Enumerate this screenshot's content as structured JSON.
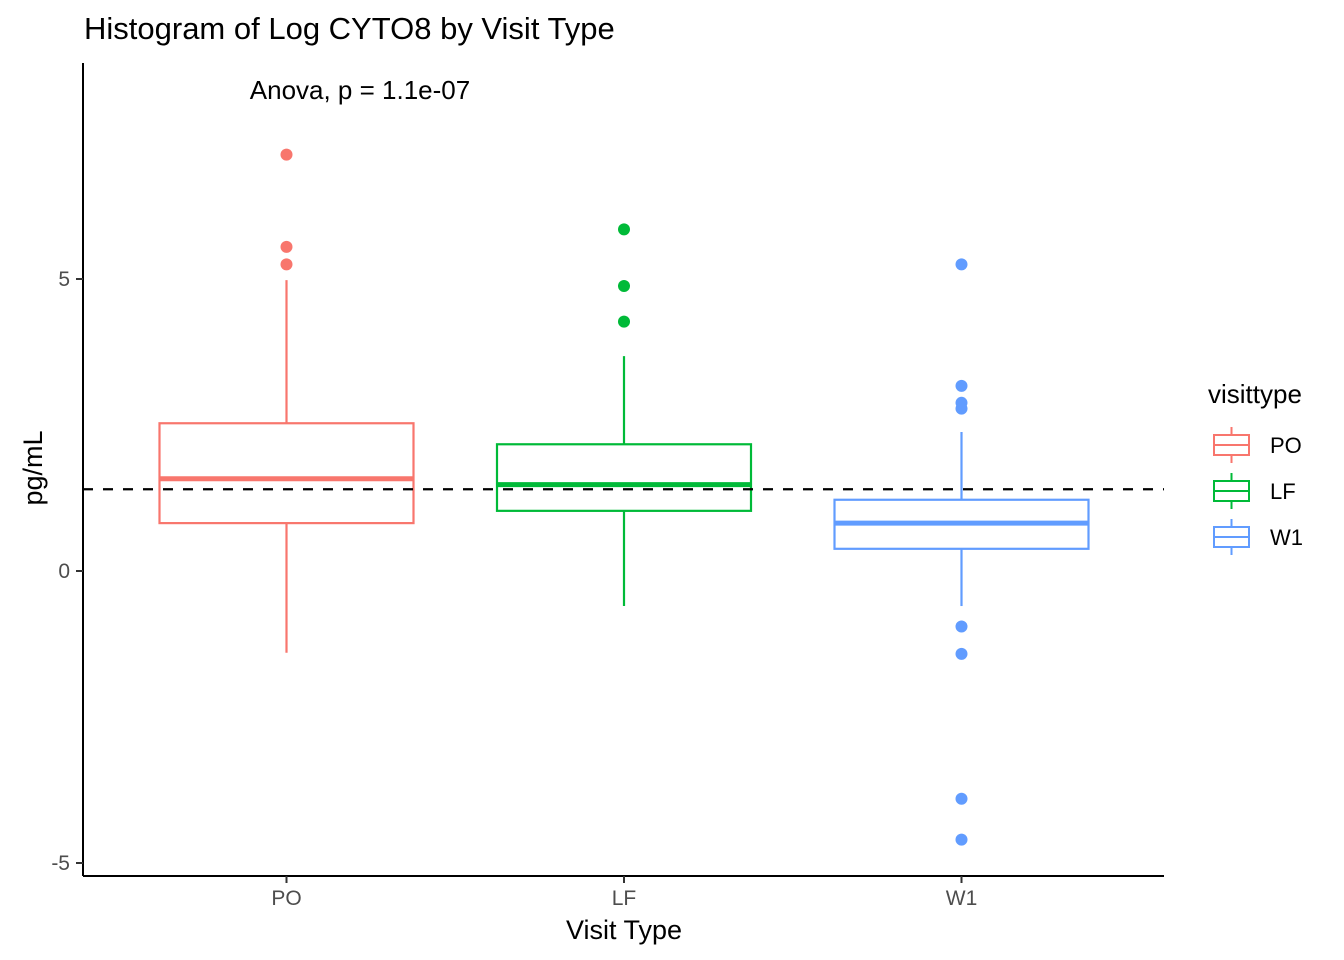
{
  "chart_data": {
    "type": "box",
    "title": "Histogram of Log CYTO8 by Visit Type",
    "xlabel": "Visit Type",
    "ylabel": "pg/mL",
    "categories": [
      "PO",
      "LF",
      "W1"
    ],
    "ylim": [
      -5.2,
      8.8
    ],
    "yticks": [
      -5,
      0,
      5
    ],
    "reference_line": 1.4,
    "annotation": "Anova, p = 1.1e-07",
    "legend": {
      "title": "visittype",
      "position": "right",
      "entries": [
        "PO",
        "LF",
        "W1"
      ]
    },
    "series": [
      {
        "name": "PO",
        "color": "#F8766D",
        "min": -1.4,
        "q1": 0.82,
        "median": 1.58,
        "q3": 2.53,
        "max": 4.98,
        "outliers": [
          7.13,
          5.55,
          5.25
        ]
      },
      {
        "name": "LF",
        "color": "#00BA38",
        "min": -0.6,
        "q1": 1.03,
        "median": 1.48,
        "q3": 2.17,
        "max": 3.68,
        "outliers": [
          5.85,
          4.88,
          4.27
        ]
      },
      {
        "name": "W1",
        "color": "#619CFF",
        "min": -0.6,
        "q1": 0.38,
        "median": 0.82,
        "q3": 1.22,
        "max": 2.38,
        "outliers": [
          5.25,
          3.17,
          2.88,
          2.78,
          -0.95,
          -1.42,
          -3.9,
          -4.6
        ]
      }
    ]
  }
}
